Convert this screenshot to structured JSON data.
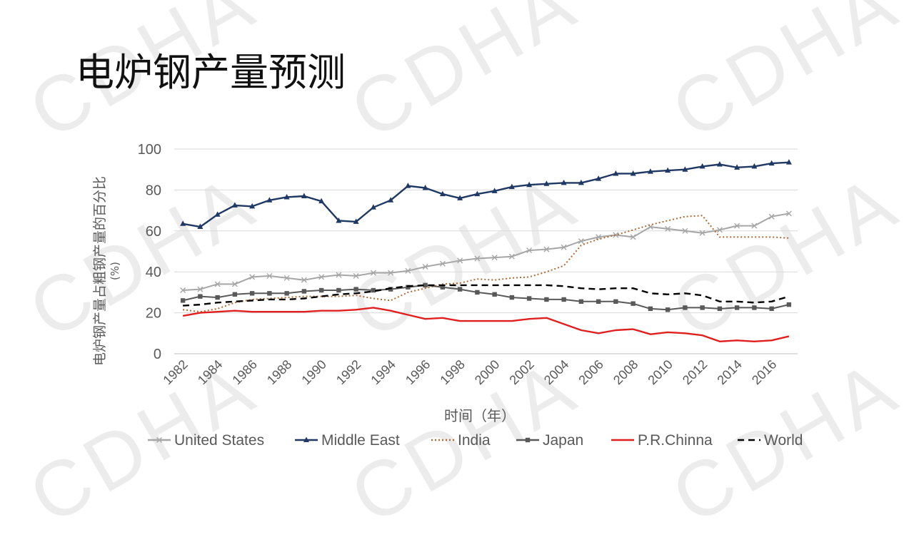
{
  "slide": {
    "title": "电炉钢产量预测",
    "watermark": "CDHA"
  },
  "chart_data": {
    "type": "line",
    "title": "电炉钢产量预测",
    "xlabel": "时间（年）",
    "ylabel": "电炉钢产量占粗钢产量的百分比",
    "ylabel_unit": "(%)",
    "xlim": [
      1982,
      2017
    ],
    "ylim": [
      0,
      100
    ],
    "yticks": [
      0,
      20,
      40,
      60,
      80,
      100
    ],
    "xtick_labels": [
      "1982",
      "1984",
      "1986",
      "1988",
      "1990",
      "1992",
      "1994",
      "1996",
      "1998",
      "2000",
      "2002",
      "2004",
      "2006",
      "2008",
      "2010",
      "2012",
      "2014",
      "2016"
    ],
    "grid": true,
    "legend_position": "bottom",
    "x": [
      1982,
      1983,
      1984,
      1985,
      1986,
      1987,
      1988,
      1989,
      1990,
      1991,
      1992,
      1993,
      1994,
      1995,
      1996,
      1997,
      1998,
      1999,
      2000,
      2001,
      2002,
      2003,
      2004,
      2005,
      2006,
      2007,
      2008,
      2009,
      2010,
      2011,
      2012,
      2013,
      2014,
      2015,
      2016,
      2017
    ],
    "series": [
      {
        "name": "United States",
        "color": "#a6a6a6",
        "dash": "solid",
        "marker": "x",
        "values": [
          31,
          31.5,
          34,
          34,
          37.5,
          38,
          37,
          36,
          37.5,
          38.5,
          38,
          39.5,
          39.5,
          40.5,
          42.5,
          44,
          45.5,
          46.5,
          47,
          47.5,
          50.5,
          51,
          52,
          55,
          57,
          58,
          57,
          62,
          61,
          60,
          59,
          60.5,
          62.5,
          62.5,
          67,
          68.5
        ]
      },
      {
        "name": "Middle East",
        "color": "#203864",
        "dash": "solid",
        "marker": "triangle",
        "values": [
          63.5,
          62,
          68,
          72.5,
          72,
          75,
          76.5,
          77,
          74.5,
          65,
          64.5,
          71.5,
          75,
          82,
          81,
          78,
          76,
          78,
          79.5,
          81.5,
          82.5,
          83,
          83.5,
          83.5,
          85.5,
          88,
          88,
          89,
          89.5,
          90,
          91.5,
          92.5,
          91,
          91.5,
          93,
          93.5
        ]
      },
      {
        "name": "India",
        "color": "#b06a35",
        "dash": "dotted",
        "marker": "none",
        "values": [
          21.5,
          20.5,
          22,
          25,
          26.5,
          27,
          27.5,
          28,
          28,
          28,
          28.5,
          27,
          26,
          30,
          32,
          34,
          34.5,
          36.5,
          36,
          37,
          37.5,
          40,
          43,
          53,
          56,
          58,
          60.5,
          63,
          65,
          67,
          67.5,
          57,
          57,
          57,
          57,
          56.5
        ]
      },
      {
        "name": "Japan",
        "color": "#595959",
        "dash": "solid",
        "marker": "square",
        "values": [
          26,
          28,
          27.5,
          29,
          29.5,
          29.5,
          29.5,
          30.5,
          31,
          31,
          31.5,
          31,
          31.5,
          32.5,
          33.5,
          32.5,
          31.5,
          30,
          29,
          27.5,
          27,
          26.5,
          26.5,
          25.5,
          25.5,
          25.5,
          24.5,
          22,
          21.5,
          22.5,
          22.5,
          22,
          22.5,
          22.5,
          22,
          24
        ]
      },
      {
        "name": "P.R.Chinna",
        "color": "#e0201e",
        "dash": "solid",
        "marker": "none",
        "values": [
          18.5,
          20,
          20.5,
          21,
          20.5,
          20.5,
          20.5,
          20.5,
          21,
          21,
          21.5,
          22.5,
          21,
          19,
          17,
          17.5,
          16,
          16,
          16,
          16,
          17,
          17.5,
          14.5,
          11.5,
          10,
          11.5,
          12,
          9.5,
          10.5,
          10,
          9,
          6,
          6.5,
          6,
          6.5,
          8.5
        ]
      },
      {
        "name": "World",
        "color": "#000000",
        "dash": "dashed",
        "marker": "none",
        "values": [
          23.5,
          24,
          25,
          25.5,
          26,
          26.5,
          26.5,
          27,
          28,
          29,
          29.5,
          30.5,
          32,
          33,
          33.5,
          33.5,
          33.5,
          33.5,
          33.5,
          33.5,
          33.5,
          33.5,
          33,
          32,
          31.5,
          32,
          32,
          29.5,
          29,
          29.5,
          28.5,
          25.5,
          25.5,
          25,
          25.5,
          28
        ]
      }
    ]
  }
}
